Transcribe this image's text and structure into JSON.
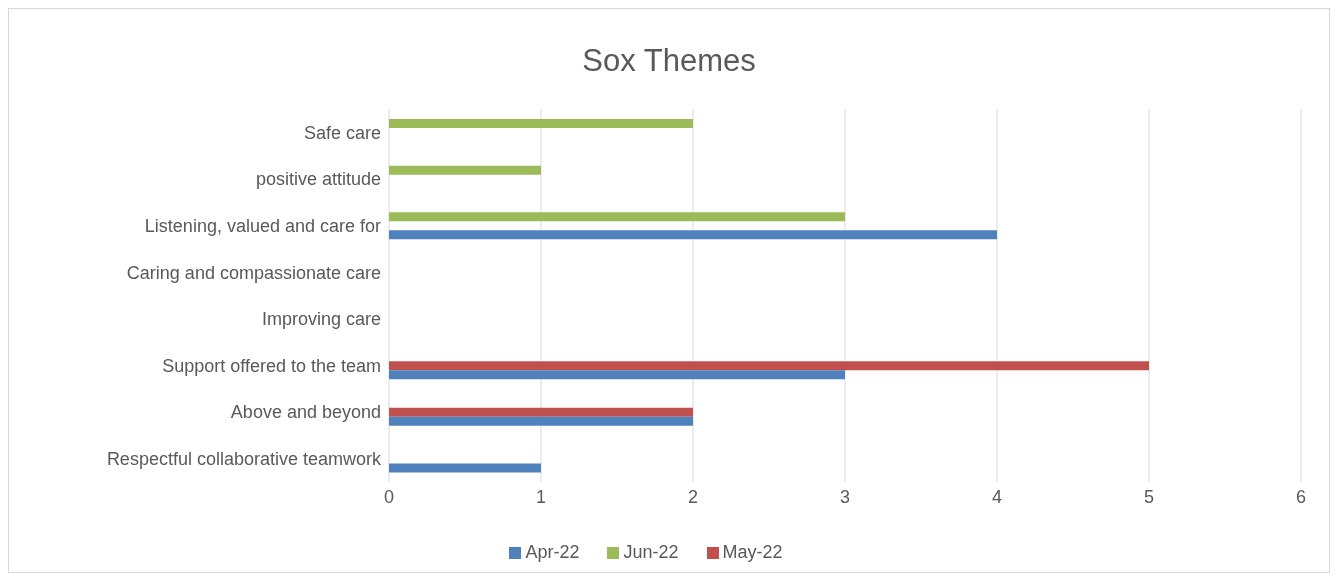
{
  "chart_data": {
    "type": "bar",
    "title": "Sox Themes",
    "orientation": "horizontal",
    "categories": [
      "Safe care",
      "positive attitude",
      "Listening,  valued and care for",
      "Caring and compassionate care",
      "Improving care",
      "Support offered to the team",
      "Above and beyond",
      "Respectful collaborative teamwork"
    ],
    "series": [
      {
        "name": "Jun-22",
        "color": "#9bbb59",
        "values": [
          2,
          1,
          3,
          null,
          null,
          null,
          null,
          null
        ]
      },
      {
        "name": "May-22",
        "color": "#c0504d",
        "values": [
          null,
          null,
          null,
          null,
          null,
          5,
          2,
          null
        ]
      },
      {
        "name": "Apr-22",
        "color": "#4f81bd",
        "values": [
          null,
          null,
          4,
          null,
          null,
          3,
          2,
          1
        ]
      }
    ],
    "xlim": [
      0,
      6
    ],
    "xticks": [
      0,
      1,
      2,
      3,
      4,
      5,
      6
    ],
    "grid": "x",
    "legend": "bottom"
  }
}
